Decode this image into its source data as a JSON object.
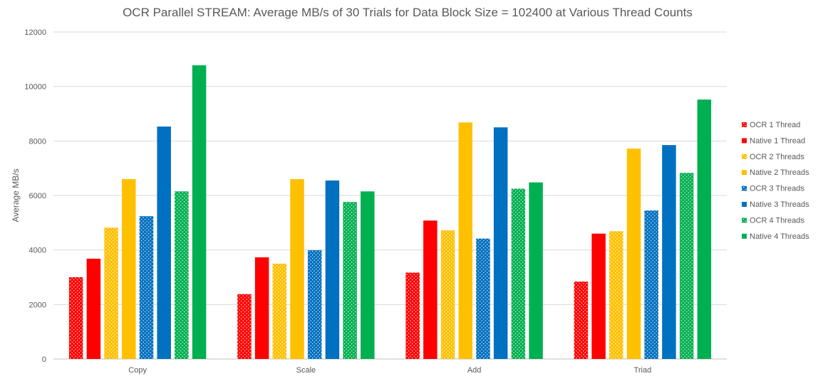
{
  "chart_data": {
    "type": "bar",
    "title": "OCR Parallel STREAM: Average MB/s of 30 Trials for Data Block Size = 102400 at Various Thread Counts",
    "xlabel": "",
    "ylabel": "Average MB/s",
    "ylim": [
      0,
      12000
    ],
    "yticks": [
      "0",
      "2000",
      "4000",
      "6000",
      "8000",
      "10000",
      "12000"
    ],
    "grid": true,
    "legend_position": "right",
    "categories": [
      "Copy",
      "Scale",
      "Add",
      "Triad"
    ],
    "series": [
      {
        "name": "OCR 1 Thread",
        "color": "#FF0000",
        "pattern": "dotted",
        "values": [
          3000,
          2380,
          3170,
          2840
        ]
      },
      {
        "name": "Native 1 Thread",
        "color": "#FF0000",
        "pattern": "solid",
        "values": [
          3680,
          3730,
          5080,
          4600
        ]
      },
      {
        "name": "OCR 2 Threads",
        "color": "#FFC000",
        "pattern": "dotted",
        "values": [
          4820,
          3500,
          4720,
          4690
        ]
      },
      {
        "name": "Native 2 Threads",
        "color": "#FFC000",
        "pattern": "solid",
        "values": [
          6600,
          6600,
          8680,
          7720
        ]
      },
      {
        "name": "OCR 3 Threads",
        "color": "#0070C0",
        "pattern": "dotted",
        "values": [
          5240,
          3990,
          4420,
          5450
        ]
      },
      {
        "name": "Native 3 Threads",
        "color": "#0070C0",
        "pattern": "solid",
        "values": [
          8530,
          6550,
          8500,
          7850
        ]
      },
      {
        "name": "OCR 4 Threads",
        "color": "#00B050",
        "pattern": "dotted",
        "values": [
          6150,
          5760,
          6250,
          6830
        ]
      },
      {
        "name": "Native 4 Threads",
        "color": "#00B050",
        "pattern": "solid",
        "values": [
          10780,
          6150,
          6480,
          9520
        ]
      }
    ]
  }
}
